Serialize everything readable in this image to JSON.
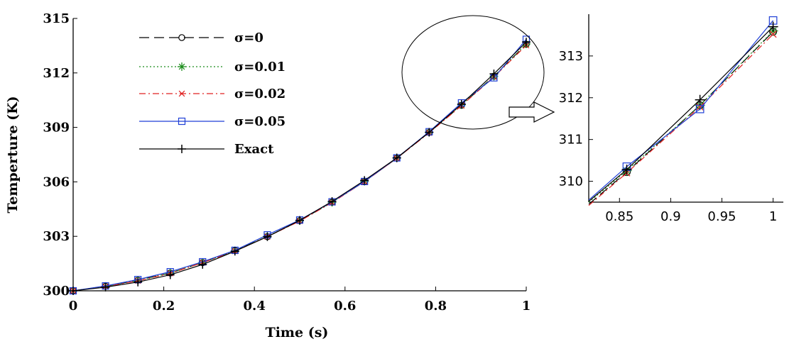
{
  "chart_data": [
    {
      "type": "line",
      "title": "",
      "xlabel": "Time (s)",
      "ylabel": "Temperture  (K)",
      "xlim": [
        0,
        1
      ],
      "ylim": [
        300,
        315
      ],
      "xticks": [
        0,
        0.2,
        0.4,
        0.6,
        0.8,
        1
      ],
      "xtick_labels": [
        "0",
        "0.2",
        "0.4",
        "0.6",
        "0.8",
        "1"
      ],
      "yticks": [
        300,
        303,
        306,
        309,
        312,
        315
      ],
      "ytick_labels": [
        "300",
        "303",
        "306",
        "309",
        "312",
        "315"
      ],
      "grid": false,
      "legend_position": "top-left",
      "x": [
        0,
        0.0714,
        0.1429,
        0.2143,
        0.2857,
        0.3571,
        0.4286,
        0.5,
        0.5714,
        0.6429,
        0.7143,
        0.7857,
        0.8571,
        0.9286,
        1.0
      ],
      "series": [
        {
          "name": "σ=0",
          "color": "#000000",
          "dash": "long-dash",
          "marker": "circle",
          "values": [
            300.0,
            300.25,
            300.58,
            300.98,
            301.55,
            302.22,
            302.98,
            303.86,
            304.88,
            306.02,
            307.3,
            308.72,
            310.22,
            311.82,
            313.58
          ]
        },
        {
          "name": "σ=0.01",
          "color": "#1a8c1a",
          "dash": "dotted",
          "marker": "asterisk",
          "values": [
            300.0,
            300.24,
            300.57,
            300.98,
            301.56,
            302.2,
            303.0,
            303.86,
            304.87,
            306.03,
            307.32,
            308.73,
            310.25,
            311.82,
            313.6
          ]
        },
        {
          "name": "σ=0.02",
          "color": "#e02020",
          "dash": "dash-dot",
          "marker": "x",
          "values": [
            300.0,
            300.23,
            300.55,
            300.96,
            301.55,
            302.18,
            302.98,
            303.84,
            304.86,
            306.01,
            307.3,
            308.7,
            310.2,
            311.78,
            313.52
          ]
        },
        {
          "name": "σ=0.05",
          "color": "#1f3fd6",
          "dash": "solid",
          "marker": "square",
          "values": [
            300.0,
            300.27,
            300.62,
            301.05,
            301.6,
            302.23,
            303.08,
            303.9,
            304.9,
            306.02,
            307.32,
            308.76,
            310.35,
            311.73,
            313.85
          ]
        },
        {
          "name": "Exact",
          "color": "#000000",
          "dash": "solid",
          "marker": "plus",
          "values": [
            300.0,
            300.2,
            300.48,
            300.88,
            301.45,
            302.18,
            302.98,
            303.88,
            304.92,
            306.08,
            307.32,
            308.73,
            310.28,
            311.95,
            313.7
          ]
        }
      ]
    },
    {
      "type": "line",
      "title": "",
      "xlabel": "",
      "ylabel": "",
      "xlim": [
        0.82,
        1.01
      ],
      "ylim": [
        309.5,
        314.0
      ],
      "xticks": [
        0.85,
        0.9,
        0.95,
        1
      ],
      "xtick_labels": [
        "0.85",
        "0.9",
        "0.95",
        "1"
      ],
      "yticks": [
        310,
        311,
        312,
        313
      ],
      "ytick_labels": [
        "310",
        "311",
        "312",
        "313"
      ],
      "grid": false,
      "x_range": [
        0.82,
        1.0
      ],
      "series_points": {
        "x": [
          0.82,
          0.8571,
          0.9286,
          1.0
        ],
        "values_by_series": [
          [
            309.45,
            310.22,
            311.82,
            313.58
          ],
          [
            309.5,
            310.25,
            311.82,
            313.6
          ],
          [
            309.42,
            310.2,
            311.78,
            313.52
          ],
          [
            309.55,
            310.35,
            311.73,
            313.85
          ],
          [
            309.52,
            310.28,
            311.95,
            313.7
          ]
        ]
      }
    }
  ]
}
